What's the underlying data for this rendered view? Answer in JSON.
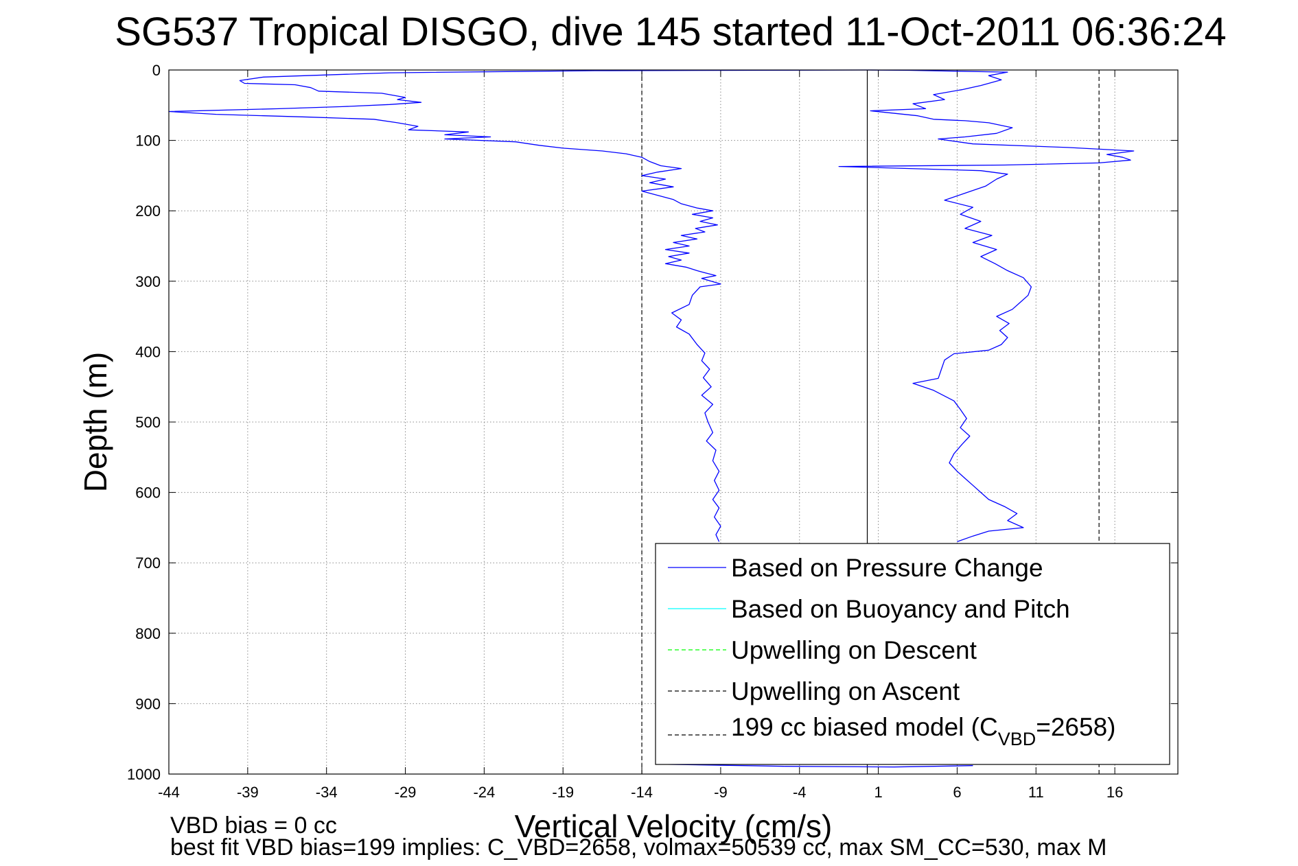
{
  "chart_data": {
    "type": "line",
    "title": "SG537 Tropical DISGO, dive 145 started 11-Oct-2011 06:36:24",
    "xlabel": "Vertical Velocity (cm/s)",
    "ylabel": "Depth (m)",
    "xlim": [
      -44,
      20
    ],
    "ylim": [
      0,
      1000
    ],
    "y_reversed": true,
    "grid": true,
    "xticks": [
      "-44",
      "-39",
      "-34",
      "-29",
      "-24",
      "-19",
      "-14",
      "-9",
      "-4",
      "1",
      "6",
      "11",
      "16"
    ],
    "yticks": [
      "0",
      "100",
      "200",
      "300",
      "400",
      "500",
      "600",
      "700",
      "800",
      "900",
      "1000"
    ],
    "legend": {
      "placement": "bottom-right",
      "entries": [
        {
          "label": "Based on Pressure Change",
          "color": "#0000ff",
          "style": "solid"
        },
        {
          "label": "Based on Buoyancy and Pitch",
          "color": "#00ffff",
          "style": "solid"
        },
        {
          "label": "Upwelling on Descent",
          "color": "#00ff00",
          "style": "dashed"
        },
        {
          "label": "Upwelling on Ascent",
          "color": "#000000",
          "style": "dashed"
        },
        {
          "label_main": "199 cc biased model (C",
          "label_sub": "VBD",
          "label_end": "=2658)",
          "color": "#000000",
          "style": "dashed"
        }
      ]
    },
    "reference_lines": [
      {
        "x": -14,
        "style": "dashed",
        "color": "#000000"
      },
      {
        "x": 15,
        "style": "dashed",
        "color": "#000000"
      },
      {
        "x": 0.3,
        "style": "solid",
        "color": "#000000"
      }
    ],
    "series": [
      {
        "name": "Based on Pressure Change",
        "segment": "descent",
        "color": "#0000ff",
        "points": [
          [
            0.3,
            0
          ],
          [
            -17,
            1
          ],
          [
            -30,
            4
          ],
          [
            -38,
            10
          ],
          [
            -39.5,
            15
          ],
          [
            -39.2,
            19
          ],
          [
            -36,
            21
          ],
          [
            -35,
            25
          ],
          [
            -34.5,
            30
          ],
          [
            -30.5,
            33
          ],
          [
            -29,
            39
          ],
          [
            -29.5,
            42
          ],
          [
            -28,
            46
          ],
          [
            -30,
            49
          ],
          [
            -33,
            52
          ],
          [
            -37,
            55
          ],
          [
            -44,
            59
          ],
          [
            -41,
            63
          ],
          [
            -35,
            67
          ],
          [
            -31,
            70
          ],
          [
            -29.5,
            75
          ],
          [
            -28.2,
            80
          ],
          [
            -28.8,
            85
          ],
          [
            -25,
            88
          ],
          [
            -26.5,
            92
          ],
          [
            -23.6,
            95
          ],
          [
            -26.5,
            98
          ],
          [
            -22,
            102
          ],
          [
            -20.5,
            107
          ],
          [
            -19,
            111
          ],
          [
            -16.5,
            115
          ],
          [
            -15,
            119
          ],
          [
            -14,
            124
          ],
          [
            -13.5,
            130
          ],
          [
            -12.8,
            136
          ],
          [
            -11.5,
            140
          ],
          [
            -13,
            145
          ],
          [
            -14,
            150
          ],
          [
            -12.5,
            155
          ],
          [
            -13.5,
            160
          ],
          [
            -12,
            166
          ],
          [
            -14,
            172
          ],
          [
            -13,
            178
          ],
          [
            -12,
            184
          ],
          [
            -11.5,
            190
          ],
          [
            -10.5,
            196
          ],
          [
            -9.5,
            200
          ],
          [
            -10.8,
            205
          ],
          [
            -9.5,
            210
          ],
          [
            -10.3,
            215
          ],
          [
            -9.2,
            220
          ],
          [
            -10.6,
            225
          ],
          [
            -10,
            230
          ],
          [
            -11.5,
            235
          ],
          [
            -10.5,
            240
          ],
          [
            -12,
            245
          ],
          [
            -11,
            250
          ],
          [
            -12.5,
            255
          ],
          [
            -11,
            260
          ],
          [
            -12.3,
            265
          ],
          [
            -11.5,
            270
          ],
          [
            -12.5,
            275
          ],
          [
            -11.2,
            280
          ],
          [
            -10.5,
            285
          ],
          [
            -10,
            288
          ],
          [
            -9.3,
            292
          ],
          [
            -10.2,
            296
          ],
          [
            -9.6,
            300
          ],
          [
            -9,
            304
          ],
          [
            -10.3,
            308
          ],
          [
            -10.8,
            320
          ],
          [
            -11,
            333
          ],
          [
            -12.1,
            345
          ],
          [
            -11.5,
            355
          ],
          [
            -11.8,
            365
          ],
          [
            -11,
            375
          ],
          [
            -10.5,
            390
          ],
          [
            -10,
            402
          ],
          [
            -10.2,
            413
          ],
          [
            -9.7,
            425
          ],
          [
            -10.1,
            437
          ],
          [
            -9.6,
            450
          ],
          [
            -10.2,
            462
          ],
          [
            -9.5,
            475
          ],
          [
            -10,
            487
          ],
          [
            -9.8,
            500
          ],
          [
            -9.5,
            515
          ],
          [
            -9.9,
            527
          ],
          [
            -9.3,
            540
          ],
          [
            -9.5,
            555
          ],
          [
            -9.1,
            570
          ],
          [
            -9.4,
            583
          ],
          [
            -9.1,
            597
          ],
          [
            -9.5,
            610
          ],
          [
            -9.1,
            622
          ],
          [
            -9.4,
            635
          ],
          [
            -9,
            648
          ],
          [
            -9.3,
            660
          ],
          [
            -9.1,
            670
          ]
        ]
      },
      {
        "name": "Based on Pressure Change",
        "segment": "ascent",
        "color": "#0000ff",
        "points": [
          [
            6,
            670
          ],
          [
            7,
            662
          ],
          [
            8,
            655
          ],
          [
            10.2,
            650
          ],
          [
            9.2,
            640
          ],
          [
            9.8,
            630
          ],
          [
            9,
            620
          ],
          [
            8,
            610
          ],
          [
            7.5,
            600
          ],
          [
            7,
            590
          ],
          [
            6.5,
            580
          ],
          [
            6,
            570
          ],
          [
            5.5,
            558
          ],
          [
            5.8,
            545
          ],
          [
            6.3,
            532
          ],
          [
            6.8,
            520
          ],
          [
            6.2,
            508
          ],
          [
            6.6,
            495
          ],
          [
            6.2,
            482
          ],
          [
            5.8,
            470
          ],
          [
            4.5,
            455
          ],
          [
            3.2,
            445
          ],
          [
            4.8,
            438
          ],
          [
            5,
            425
          ],
          [
            5.2,
            412
          ],
          [
            5.8,
            403
          ],
          [
            8,
            398
          ],
          [
            8.8,
            390
          ],
          [
            9.2,
            380
          ],
          [
            8.7,
            370
          ],
          [
            9.3,
            360
          ],
          [
            8.5,
            350
          ],
          [
            9.5,
            340
          ],
          [
            10,
            330
          ],
          [
            10.5,
            320
          ],
          [
            10.7,
            308
          ],
          [
            10.2,
            295
          ],
          [
            9.2,
            285
          ],
          [
            8.4,
            275
          ],
          [
            7.5,
            265
          ],
          [
            8.5,
            255
          ],
          [
            7,
            245
          ],
          [
            8.2,
            235
          ],
          [
            6.5,
            225
          ],
          [
            7.5,
            215
          ],
          [
            6.2,
            205
          ],
          [
            7,
            195
          ],
          [
            5.2,
            185
          ],
          [
            6.5,
            175
          ],
          [
            7.8,
            165
          ],
          [
            8.5,
            155
          ],
          [
            9.2,
            148
          ],
          [
            7.5,
            143
          ],
          [
            0,
            138
          ],
          [
            -1.5,
            137
          ],
          [
            9,
            135
          ],
          [
            15,
            132
          ],
          [
            17,
            128
          ],
          [
            16.5,
            124
          ],
          [
            15.5,
            120
          ],
          [
            17.2,
            115
          ],
          [
            13,
            110
          ],
          [
            7,
            105
          ],
          [
            4.8,
            98
          ],
          [
            6.5,
            95
          ],
          [
            8.5,
            90
          ],
          [
            9.5,
            82
          ],
          [
            8,
            75
          ],
          [
            6.5,
            72
          ],
          [
            4.5,
            70
          ],
          [
            3.5,
            65
          ],
          [
            0.5,
            58
          ],
          [
            4,
            55
          ],
          [
            3.2,
            48
          ],
          [
            5.2,
            42
          ],
          [
            4.5,
            35
          ],
          [
            6.3,
            28
          ],
          [
            7.5,
            22
          ],
          [
            8.8,
            14
          ],
          [
            8,
            8
          ],
          [
            9.2,
            3
          ],
          [
            3,
            0.5
          ],
          [
            0.3,
            0
          ]
        ]
      },
      {
        "name": "Based on Pressure Change",
        "segment": "bottom",
        "color": "#0000ff",
        "points": [
          [
            -13,
            986
          ],
          [
            -5,
            989
          ],
          [
            2,
            990
          ],
          [
            7,
            988
          ]
        ]
      }
    ]
  },
  "footer": {
    "line1": "VBD bias = 0 cc",
    "line2": "best fit VBD bias=199 implies: C_VBD=2658, volmax=50539 cc, max SM_CC=530, max M"
  }
}
